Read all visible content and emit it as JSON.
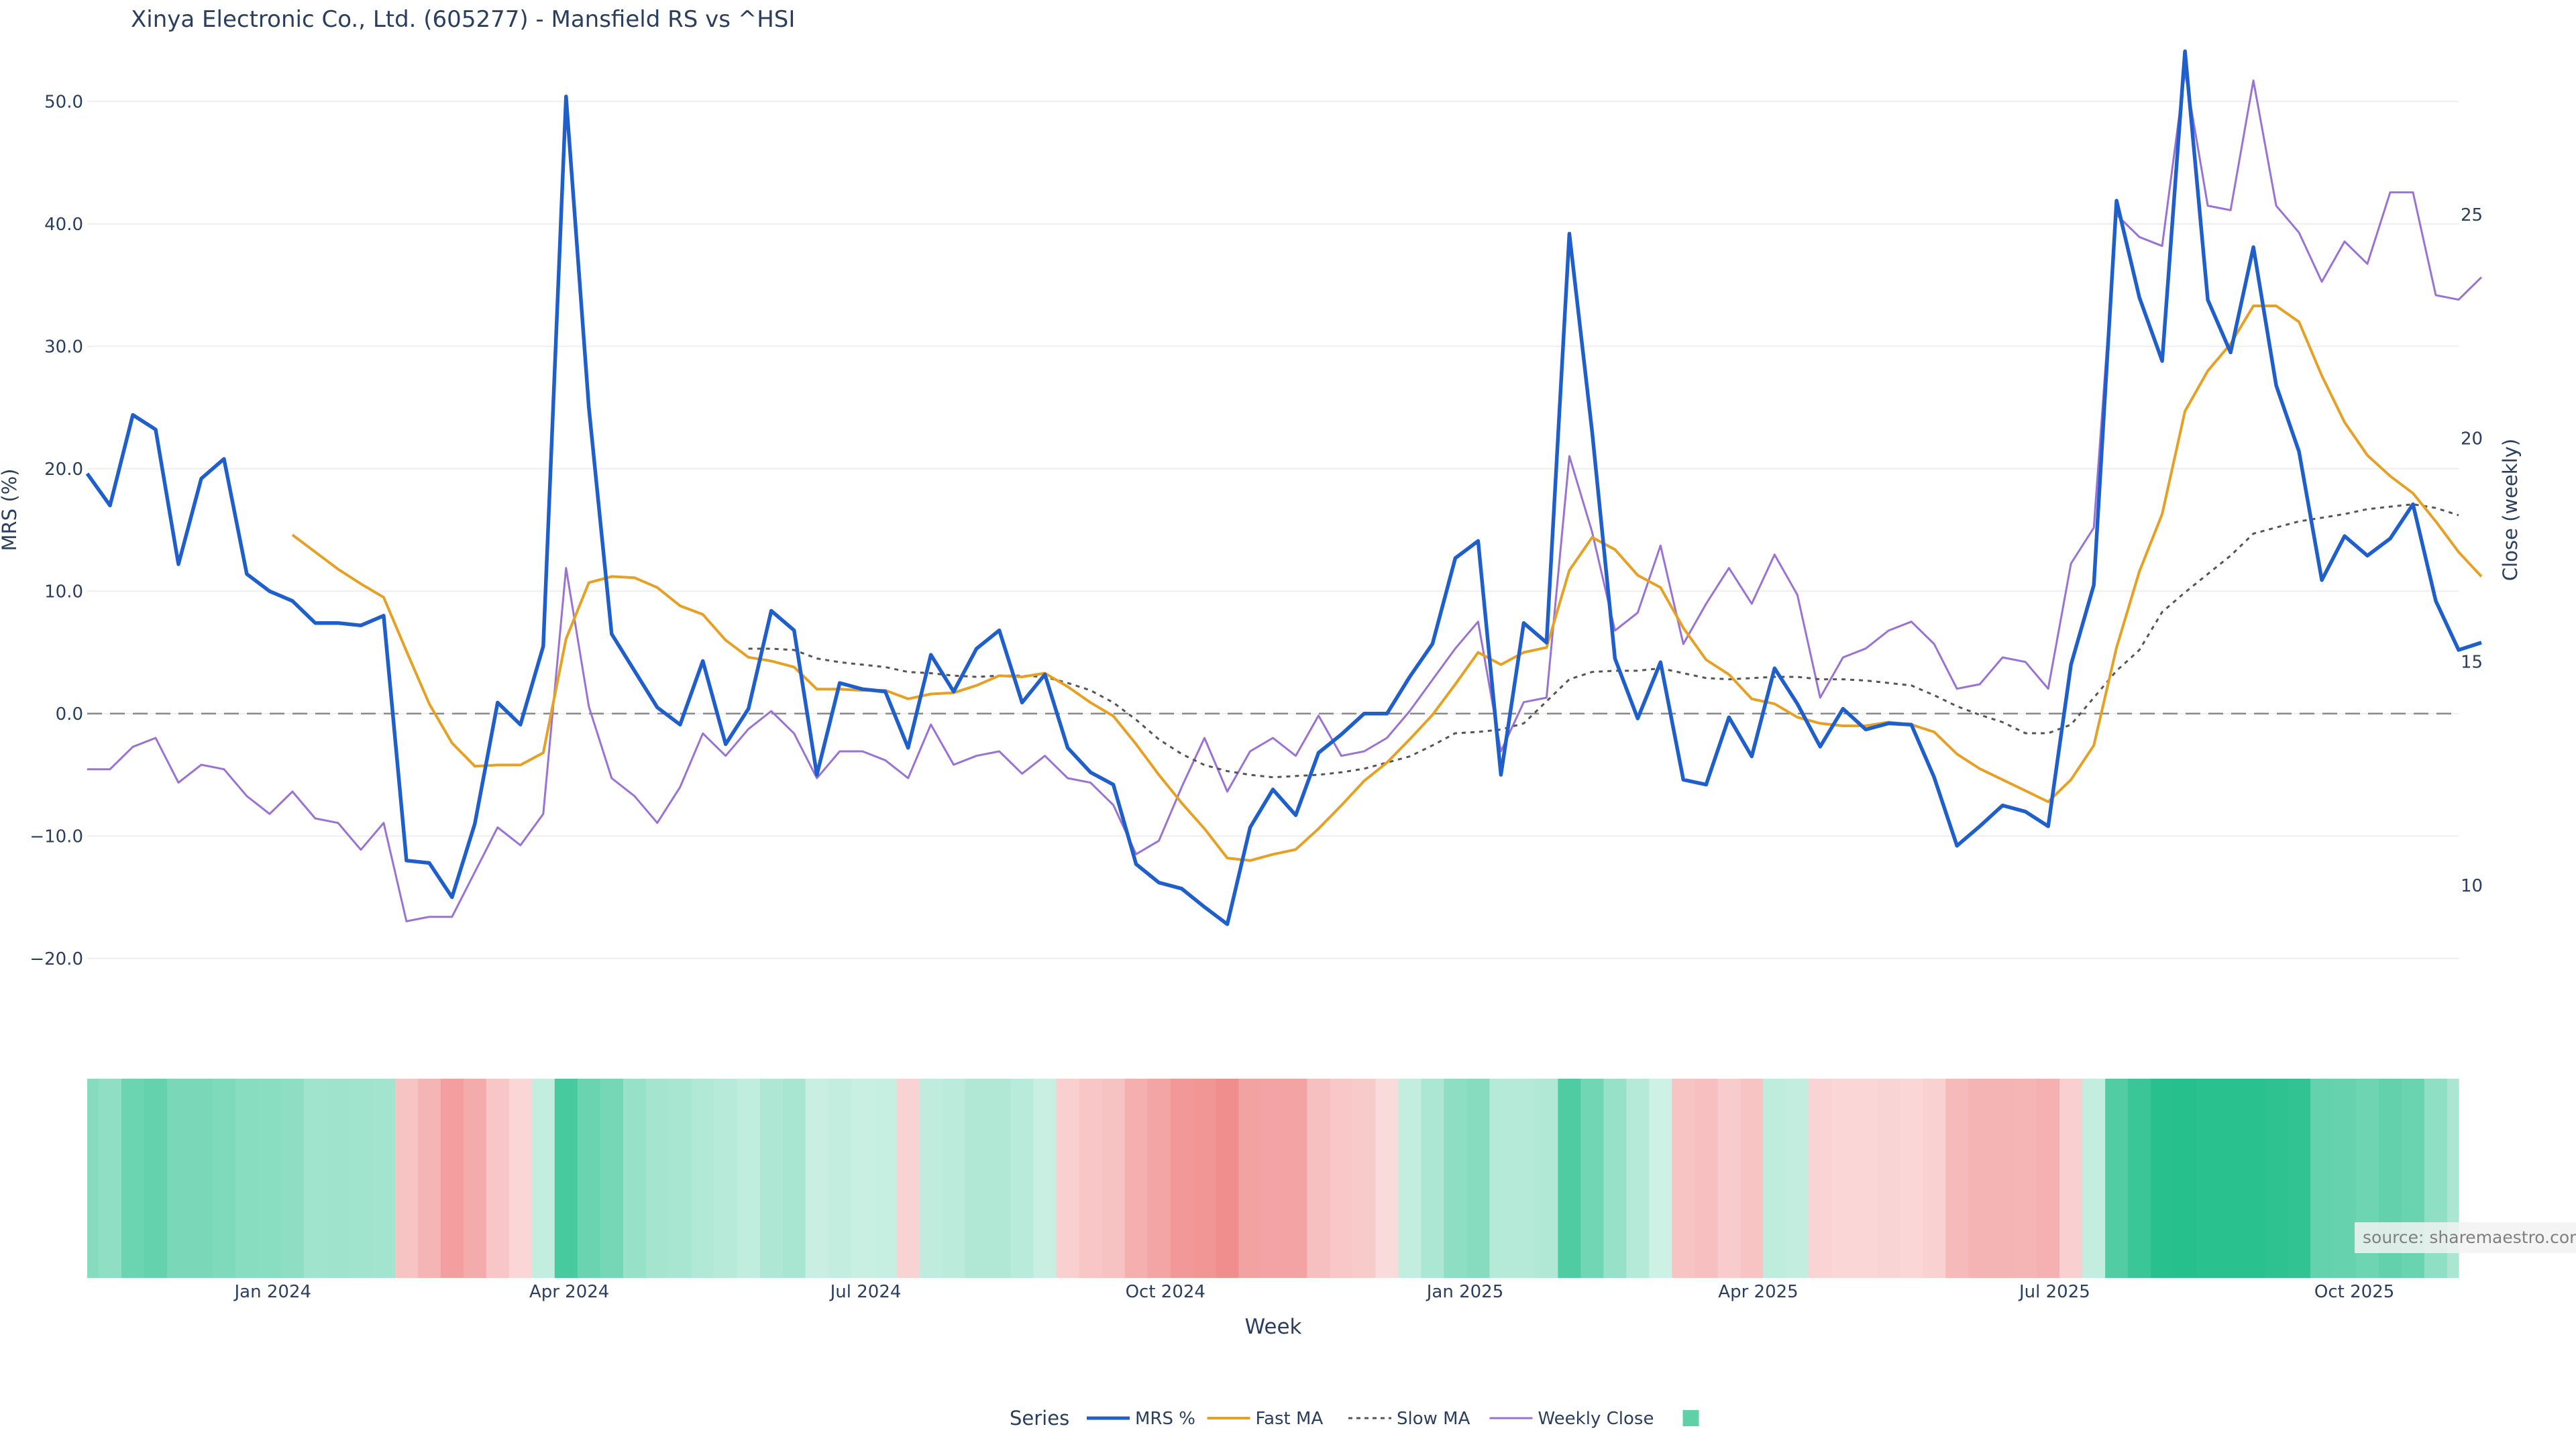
{
  "chart_data": {
    "type": "line",
    "title": "Xinya Electronic Co., Ltd. (605277) - Mansfield RS vs ^HSI",
    "xlabel": "Week",
    "ylabel": "MRS (%)",
    "y2label": "Close (weekly)",
    "source": "source: sharemaestro.com",
    "legend_title": "Series",
    "legend_position": "bottom-center",
    "grid": true,
    "x_range": [
      "2023-11-05",
      "2025-11-02"
    ],
    "ylim": [
      -25,
      55
    ],
    "y2lim": [
      7.0,
      28.9
    ],
    "y_ticks": [
      "50.0",
      "40.0",
      "30.0",
      "20.0",
      "10.0",
      "0.0",
      "−10.0",
      "−20.0"
    ],
    "y_tick_values": [
      50,
      40,
      30,
      20,
      10,
      0,
      -10,
      -20
    ],
    "y2_ticks": [
      "25",
      "20",
      "15",
      "10"
    ],
    "y2_tick_values": [
      25,
      20,
      15,
      10
    ],
    "x_ticks": [
      {
        "date": "2024-01-01",
        "label": "Jan 2024"
      },
      {
        "date": "2024-04-01",
        "label": "Apr 2024"
      },
      {
        "date": "2024-07-01",
        "label": "Jul 2024"
      },
      {
        "date": "2024-10-01",
        "label": "Oct 2024"
      },
      {
        "date": "2025-01-01",
        "label": "Jan 2025"
      },
      {
        "date": "2025-04-01",
        "label": "Apr 2025"
      },
      {
        "date": "2025-07-01",
        "label": "Jul 2025"
      },
      {
        "date": "2025-10-01",
        "label": "Oct 2025"
      }
    ],
    "start_week": "2023-11-05",
    "week_step_days": 7,
    "zero_line": 0,
    "colors": {
      "mrs": "#1f5fcc",
      "fast": "#e6a124",
      "slow": "#555555",
      "close": "#9a72d6",
      "zero": "#888888",
      "grid": "#eeeeee",
      "heat_pos": "#26c08c",
      "heat_neg": "#f08a8a",
      "legend_box": "#5fd1a6"
    },
    "series": [
      {
        "name": "MRS %",
        "axis": "y",
        "values": [
          19.6,
          17.0,
          24.4,
          23.2,
          12.2,
          19.2,
          20.8,
          11.4,
          10.0,
          9.2,
          7.4,
          7.4,
          7.2,
          8.0,
          -12.0,
          -12.2,
          -15.0,
          -9.0,
          0.9,
          -0.9,
          5.5,
          50.4,
          25.0,
          6.5,
          3.5,
          0.5,
          -0.9,
          4.3,
          -2.5,
          0.4,
          8.4,
          6.8,
          -5.0,
          2.5,
          2.0,
          1.8,
          -2.8,
          4.8,
          1.8,
          5.3,
          6.8,
          0.9,
          3.2,
          -2.8,
          -4.8,
          -5.8,
          -12.3,
          -13.8,
          -14.3,
          -15.8,
          -17.2,
          -9.3,
          -6.2,
          -8.3,
          -3.2,
          -1.7,
          0.0,
          0.0,
          3.0,
          5.7,
          12.7,
          14.1,
          -5.0,
          7.4,
          5.8,
          39.2,
          23.0,
          4.5,
          -0.4,
          4.2,
          -5.4,
          -5.8,
          -0.3,
          -3.5,
          3.7,
          0.8,
          -2.7,
          0.4,
          -1.3,
          -0.8,
          -0.9,
          -5.2,
          -10.8,
          -9.2,
          -7.5,
          -8.0,
          -9.2,
          4.0,
          10.5,
          41.9,
          34.0,
          28.8,
          54.1,
          33.8,
          29.5,
          38.1,
          26.8,
          21.4,
          10.9,
          14.5,
          12.9,
          14.3,
          17.1,
          9.2,
          5.2,
          5.8
        ]
      },
      {
        "name": "Fast MA",
        "axis": "y",
        "start_index": 9,
        "values": [
          14.6,
          13.2,
          11.8,
          10.6,
          9.5,
          5.1,
          0.8,
          -2.4,
          -4.3,
          -4.2,
          -4.2,
          -3.2,
          6.1,
          10.7,
          11.2,
          11.1,
          10.3,
          8.8,
          8.1,
          6.0,
          4.6,
          4.3,
          3.8,
          2.0,
          2.0,
          1.9,
          1.9,
          1.2,
          1.6,
          1.7,
          2.3,
          3.1,
          3.0,
          3.3,
          2.2,
          0.9,
          -0.2,
          -2.5,
          -5.0,
          -7.3,
          -9.4,
          -11.8,
          -12.0,
          -11.5,
          -11.1,
          -9.4,
          -7.5,
          -5.5,
          -4.0,
          -2.1,
          -0.1,
          2.4,
          5.0,
          4.0,
          5.0,
          5.4,
          11.7,
          14.4,
          13.4,
          11.3,
          10.3,
          7.0,
          4.4,
          3.2,
          1.2,
          0.8,
          -0.3,
          -0.8,
          -1.0,
          -1.0,
          -0.7,
          -0.9,
          -1.5,
          -3.3,
          -4.5,
          -5.4,
          -6.3,
          -7.2,
          -5.4,
          -2.6,
          5.4,
          11.6,
          16.3,
          24.7,
          28.0,
          30.2,
          33.3,
          33.3,
          32.0,
          27.6,
          23.8,
          21.1,
          19.4,
          18.0,
          15.7,
          13.2,
          11.2
        ]
      },
      {
        "name": "Slow MA",
        "axis": "y",
        "start_index": 29,
        "values": [
          5.3,
          5.3,
          5.2,
          4.5,
          4.2,
          4.0,
          3.8,
          3.4,
          3.3,
          3.1,
          3.0,
          3.1,
          3.1,
          3.0,
          2.5,
          1.9,
          0.9,
          -0.5,
          -2.1,
          -3.3,
          -4.2,
          -4.7,
          -5.0,
          -5.2,
          -5.1,
          -5.0,
          -4.8,
          -4.5,
          -4.0,
          -3.5,
          -2.6,
          -1.6,
          -1.5,
          -1.3,
          -0.8,
          1.0,
          2.8,
          3.4,
          3.5,
          3.5,
          3.7,
          3.3,
          2.9,
          2.8,
          2.9,
          3.0,
          3.0,
          2.8,
          2.8,
          2.7,
          2.5,
          2.3,
          1.5,
          0.6,
          -0.1,
          -0.7,
          -1.6,
          -1.6,
          -0.9,
          1.3,
          3.5,
          5.2,
          8.3,
          9.9,
          11.4,
          12.9,
          14.7,
          15.2,
          15.7,
          16.0,
          16.3,
          16.7,
          16.9,
          17.1,
          16.8,
          16.2
        ]
      },
      {
        "name": "Weekly Close",
        "axis": "y2",
        "values": [
          12.6,
          12.6,
          13.1,
          13.3,
          12.3,
          12.7,
          12.6,
          12.0,
          11.6,
          12.1,
          11.5,
          11.4,
          10.8,
          11.4,
          9.2,
          9.3,
          9.3,
          10.3,
          11.3,
          10.9,
          11.6,
          17.1,
          14.0,
          12.4,
          12.0,
          11.4,
          12.2,
          13.4,
          12.9,
          13.5,
          13.9,
          13.4,
          12.4,
          13.0,
          13.0,
          12.8,
          12.4,
          13.6,
          12.7,
          12.9,
          13.0,
          12.5,
          12.9,
          12.4,
          12.3,
          11.8,
          10.7,
          11.0,
          12.2,
          13.3,
          12.1,
          13.0,
          13.3,
          12.9,
          13.8,
          12.9,
          13.0,
          13.3,
          13.9,
          14.6,
          15.3,
          15.9,
          13.0,
          14.1,
          14.2,
          19.6,
          17.9,
          15.7,
          16.1,
          17.6,
          15.4,
          16.3,
          17.1,
          16.3,
          17.4,
          16.5,
          14.2,
          15.1,
          15.3,
          15.7,
          15.9,
          15.4,
          14.4,
          14.5,
          15.1,
          15.0,
          14.4,
          17.2,
          18.0,
          25.0,
          24.5,
          24.3,
          28.2,
          25.2,
          25.1,
          28.0,
          25.2,
          24.6,
          23.5,
          24.4,
          23.9,
          25.5,
          25.5,
          23.2,
          23.1,
          23.6
        ]
      }
    ],
    "heatmap": {
      "label": "",
      "values": [
        24.4,
        21.4,
        33.1,
        35.4,
        28.4,
        28.5,
        27.1,
        24.0,
        23.7,
        22.2,
        16.1,
        16.6,
        16.0,
        15.8,
        -13.6,
        -20.6,
        -30.2,
        -25.1,
        -12.7,
        -5.3,
        5.4,
        44.4,
        33.6,
        29.5,
        19.5,
        14.8,
        13.8,
        10.6,
        8.9,
        6.0,
        11.8,
        13.7,
        3.8,
        5.3,
        3.3,
        4.1,
        -6.8,
        6.5,
        7.7,
        11.4,
        11.4,
        8.4,
        3.7,
        -8.7,
        -12.6,
        -14.4,
        -23.2,
        -27.6,
        -33.5,
        -35.2,
        -38.3,
        -29.0,
        -28.4,
        -28.6,
        -15.2,
        -12.1,
        -10.3,
        -3.1,
        5.4,
        12.8,
        22.3,
        24.2,
        9.8,
        9.7,
        11.2,
        41.7,
        31.5,
        18.8,
        9.7,
        1.8,
        -13.9,
        -15.8,
        -10.1,
        -14.0,
        6.8,
        5.4,
        -6.1,
        -5.5,
        -5.5,
        -6.4,
        -5.3,
        -7.6,
        -18.2,
        -20.9,
        -20.9,
        -20.4,
        -22.2,
        -8.5,
        5.5,
        41.5,
        48.2,
        54.4,
        55.2,
        54.0,
        54.0,
        54.0,
        52.7,
        51.3,
        35.5,
        34.5,
        32.6,
        36.0,
        33.3,
        21.6,
        13.2,
        13.0
      ]
    },
    "legend": [
      {
        "label": "MRS %",
        "style": "line-thick"
      },
      {
        "label": "Fast MA",
        "style": "line"
      },
      {
        "label": "Slow MA",
        "style": "dotted"
      },
      {
        "label": "Weekly Close",
        "style": "line-thin"
      },
      {
        "label": "",
        "style": "box"
      }
    ]
  }
}
